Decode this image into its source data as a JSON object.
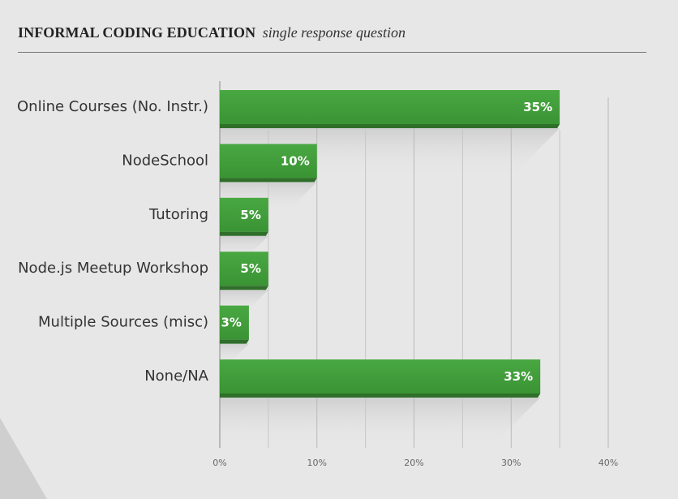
{
  "header": {
    "title": "INFORMAL CODING EDUCATION",
    "subtitle": "single response question"
  },
  "chart_data": {
    "type": "bar",
    "orientation": "horizontal",
    "categories": [
      "Online Courses (No. Instr.)",
      "NodeSchool",
      "Tutoring",
      "Node.js Meetup Workshop",
      "Multiple Sources (misc)",
      "None/NA"
    ],
    "values": [
      35,
      10,
      5,
      5,
      3,
      33
    ],
    "value_labels": [
      "35%",
      "10%",
      "5%",
      "5%",
      "3%",
      "33%"
    ],
    "xlim": [
      0,
      40
    ],
    "x_ticks": [
      0,
      10,
      20,
      30,
      40
    ],
    "x_tick_labels": [
      "0%",
      "10%",
      "20%",
      "30%",
      "40%"
    ],
    "grid": true,
    "colors": {
      "bar": "#3f9b38",
      "bar_shadow": "#2f6f2a",
      "grid": "#b9b9b9"
    }
  }
}
